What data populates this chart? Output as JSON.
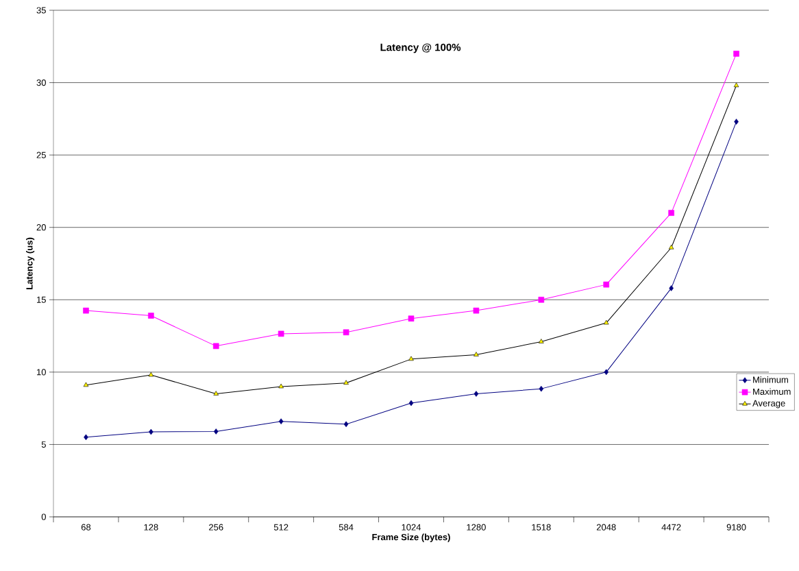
{
  "chart_data": {
    "type": "line",
    "title": "Latency @ 100%",
    "xlabel": "Frame Size (bytes)",
    "ylabel": "Latency (us)",
    "categories": [
      "68",
      "128",
      "256",
      "512",
      "584",
      "1024",
      "1280",
      "1518",
      "2048",
      "4472",
      "9180"
    ],
    "series": [
      {
        "name": "Minimum",
        "color": "#000080",
        "marker": "diamond",
        "values": [
          5.5,
          5.87,
          5.9,
          6.6,
          6.4,
          7.86,
          8.5,
          8.85,
          10.0,
          15.8,
          27.3
        ]
      },
      {
        "name": "Maximum",
        "color": "#ff00ff",
        "marker": "square",
        "values": [
          14.25,
          13.9,
          11.8,
          12.65,
          12.75,
          13.7,
          14.25,
          15.0,
          16.05,
          21.0,
          32.0
        ]
      },
      {
        "name": "Average",
        "color": "#000000",
        "marker": "triangle",
        "values": [
          9.1,
          9.8,
          8.5,
          9.0,
          9.25,
          10.9,
          11.2,
          12.1,
          13.4,
          18.6,
          29.8
        ]
      }
    ],
    "ylim": [
      0,
      35
    ],
    "yticks": [
      0,
      5,
      10,
      15,
      20,
      25,
      30,
      35
    ],
    "grid": "y",
    "legend": "bottom right",
    "line_style": "solid"
  }
}
